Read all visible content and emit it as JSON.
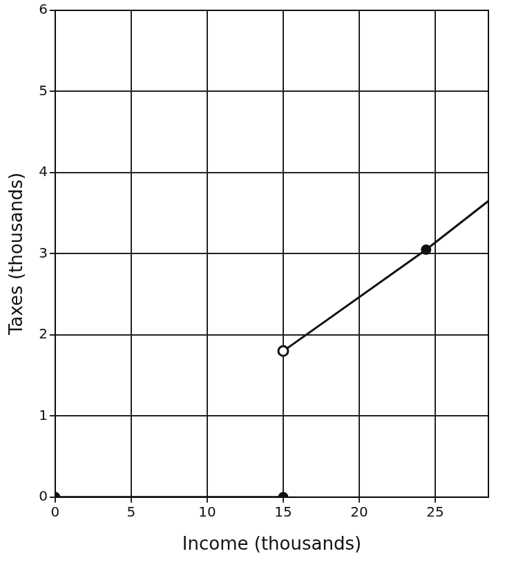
{
  "chart_data": {
    "type": "line",
    "x_label": "Income (thousands)",
    "y_label": "Taxes (thousands)",
    "xlim": [
      0,
      28.5
    ],
    "xticks": [
      0,
      5,
      10,
      15,
      20,
      25
    ],
    "ylim": [
      0,
      6
    ],
    "yticks": [
      0,
      1,
      2,
      3,
      4,
      5,
      6
    ],
    "grid": true,
    "series": [
      {
        "type": "line",
        "color": "#111111",
        "marker": "circle",
        "line_style": "solid",
        "x": [
          0,
          15
        ],
        "values": [
          0,
          0
        ]
      },
      {
        "type": "line",
        "color": "#111111",
        "marker": "none",
        "line_style": "solid",
        "x": [
          15,
          24.4,
          28.5
        ],
        "values": [
          1.8,
          3.05,
          3.65
        ]
      },
      {
        "type": "scatter",
        "color": "#111111",
        "marker": "open_circle",
        "x": [
          15
        ],
        "values": [
          1.8
        ]
      },
      {
        "type": "scatter",
        "color": "#111111",
        "marker": "circle",
        "x": [
          24.4
        ],
        "values": [
          3.05
        ]
      }
    ]
  }
}
